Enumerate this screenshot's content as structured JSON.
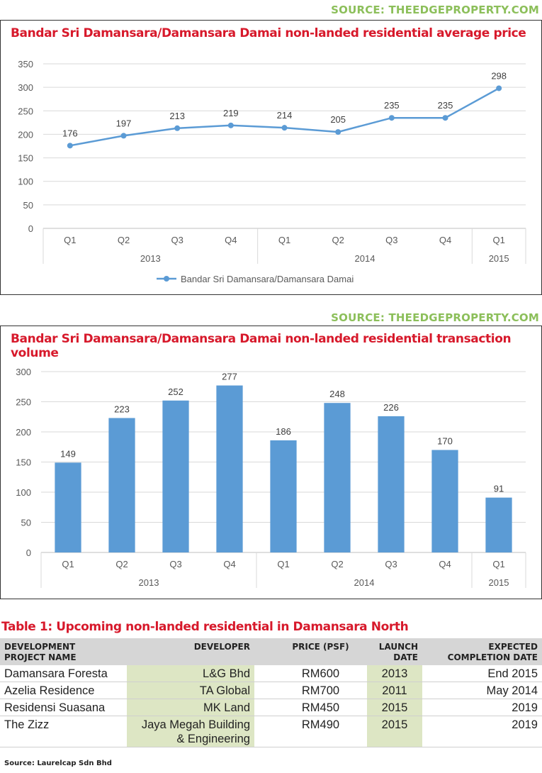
{
  "accent_red": "#d7192b",
  "source_green": "#8cbf5a",
  "series_blue": "#5b9bd5",
  "sources": {
    "top": "SOURCE: THEEDGEPROPERTY.COM",
    "middle": "SOURCE: THEEDGEPROPERTY.COM"
  },
  "chart_data": [
    {
      "type": "line",
      "title": "Bandar Sri Damansara/Damansara Damai non-landed residential average price",
      "categories": [
        "Q1",
        "Q2",
        "Q3",
        "Q4",
        "Q1",
        "Q2",
        "Q3",
        "Q4",
        "Q1"
      ],
      "groups": [
        {
          "label": "2013",
          "start": 0,
          "end": 3
        },
        {
          "label": "2014",
          "start": 4,
          "end": 7
        },
        {
          "label": "2015",
          "start": 8,
          "end": 8
        }
      ],
      "series": [
        {
          "name": "Bandar Sri Damansara/Damansara Damai",
          "values": [
            176,
            197,
            213,
            219,
            214,
            205,
            235,
            235,
            298
          ]
        }
      ],
      "yticks": [
        0,
        50,
        100,
        150,
        200,
        250,
        300,
        350
      ],
      "ylim": [
        0,
        350
      ],
      "grid": true,
      "legend": "bottom"
    },
    {
      "type": "bar",
      "title": "Bandar Sri Damansara/Damansara Damai non-landed residential transaction volume",
      "categories": [
        "Q1",
        "Q2",
        "Q3",
        "Q4",
        "Q1",
        "Q2",
        "Q3",
        "Q4",
        "Q1"
      ],
      "groups": [
        {
          "label": "2013",
          "start": 0,
          "end": 3
        },
        {
          "label": "2014",
          "start": 4,
          "end": 7
        },
        {
          "label": "2015",
          "start": 8,
          "end": 8
        }
      ],
      "values": [
        149,
        223,
        252,
        277,
        186,
        248,
        226,
        170,
        91
      ],
      "yticks": [
        0,
        50,
        100,
        150,
        200,
        250,
        300
      ],
      "ylim": [
        0,
        300
      ],
      "grid": true
    }
  ],
  "table": {
    "title": "Table 1: Upcoming non-landed residential in Damansara North",
    "headers": {
      "name_1": "DEVELOPMENT",
      "name_2": "PROJECT NAME",
      "developer": "DEVELOPER",
      "price": "PRICE (PSF)",
      "launch_1": "LAUNCH",
      "launch_2": "DATE",
      "completion_1": "EXPECTED",
      "completion_2": "COMPLETION DATE"
    },
    "rows": [
      {
        "name": "Damansara Foresta",
        "developer": "L&G Bhd",
        "developer_2": "",
        "price": "RM600",
        "launch": "2013",
        "completion": "End 2015"
      },
      {
        "name": "Azelia Residence",
        "developer": "TA Global",
        "developer_2": "",
        "price": "RM700",
        "launch": "2011",
        "completion": "May 2014"
      },
      {
        "name": "Residensi Suasana",
        "developer": "MK Land",
        "developer_2": "",
        "price": "RM450",
        "launch": "2015",
        "completion": "2019"
      },
      {
        "name": "The Zizz",
        "developer": "Jaya Megah Building",
        "developer_2": "& Engineering",
        "price": "RM490",
        "launch": "2015",
        "completion": "2019"
      }
    ],
    "source": "Source: Laurelcap Sdn Bhd"
  }
}
